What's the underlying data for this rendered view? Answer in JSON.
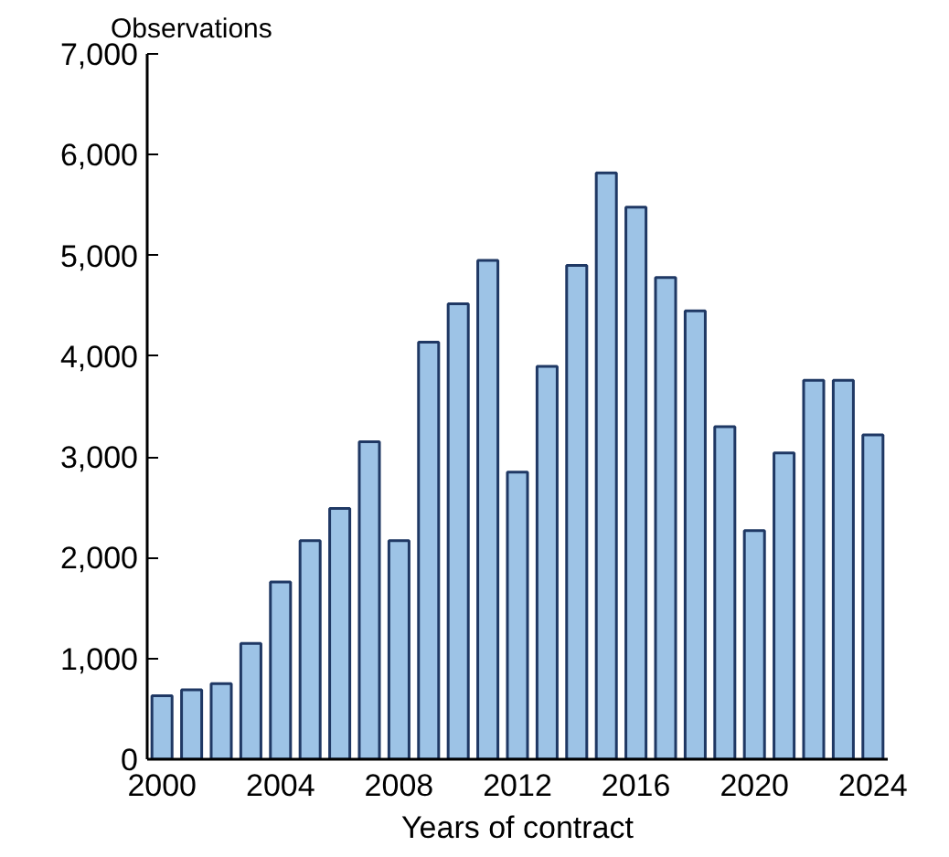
{
  "chart_data": {
    "type": "bar",
    "xlabel": "Years of contract",
    "ylabel": "Observations",
    "x": [
      2000,
      2001,
      2002,
      2003,
      2004,
      2005,
      2006,
      2007,
      2008,
      2009,
      2010,
      2011,
      2012,
      2013,
      2014,
      2015,
      2016,
      2017,
      2018,
      2019,
      2020,
      2021,
      2022,
      2023,
      2024
    ],
    "values": [
      630,
      690,
      750,
      1150,
      1760,
      2170,
      2490,
      3150,
      2170,
      4140,
      4520,
      4950,
      2850,
      3900,
      4900,
      5820,
      5480,
      4780,
      4450,
      3300,
      2270,
      3040,
      3760,
      3760,
      3220
    ],
    "color": "#9dc3e6",
    "xlim": [
      1999.5,
      2024.5
    ],
    "xticks": [
      2000,
      2004,
      2008,
      2012,
      2016,
      2020,
      2024
    ],
    "ylim": [
      0,
      7000
    ],
    "yticks": [
      {
        "value": 0,
        "label": "0"
      },
      {
        "value": 1000,
        "label": "1,000"
      },
      {
        "value": 2000,
        "label": "2,000"
      },
      {
        "value": 3000,
        "label": "3,000"
      },
      {
        "value": 4000,
        "label": "4,000"
      },
      {
        "value": 5000,
        "label": "5,000"
      },
      {
        "value": 6000,
        "label": "6,000"
      },
      {
        "value": 7000,
        "label": "7,000"
      }
    ],
    "grid": false
  }
}
